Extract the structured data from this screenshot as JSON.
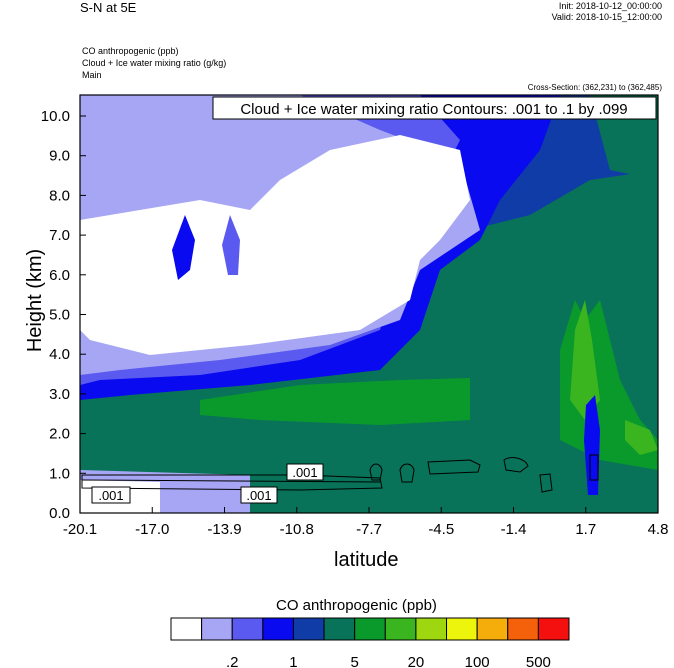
{
  "header": {
    "title": "S-N at 5E",
    "init": "Init: 2018-10-12_00:00:00",
    "valid": "Valid: 2018-10-15_12:00:00",
    "fields": [
      "CO anthropogenic   (ppb)",
      "Cloud + Ice water mixing ratio   (g/kg)",
      "Main"
    ],
    "cross_section": "Cross-Section: (362,231) to (362,485)"
  },
  "chart_data": {
    "type": "heatmap",
    "xlabel": "latitude",
    "ylabel": "Height (km)",
    "x_ticks": [
      "-20.1",
      "-17.0",
      "-13.9",
      "-10.8",
      "-7.7",
      "-4.5",
      "-1.4",
      "1.7",
      "4.8"
    ],
    "y_ticks": [
      "0.0",
      "1.0",
      "2.0",
      "3.0",
      "4.0",
      "5.0",
      "6.0",
      "7.0",
      "8.0",
      "9.0",
      "10.0"
    ],
    "xlim": [
      -20.1,
      4.8
    ],
    "ylim": [
      0.0,
      10.0
    ],
    "contour_title": "Cloud + Ice water mixing ratio Contours: .001 to .1 by .099",
    "contour_labels": [
      ".001",
      ".001",
      ".001"
    ],
    "colorbar": {
      "title": "CO anthropogenic  (ppb)",
      "tick_labels": [
        ".2",
        "1",
        "5",
        "20",
        "100",
        "500"
      ],
      "colors": [
        "#ffffff",
        "#a6a6f5",
        "#5a5af0",
        "#0a0af0",
        "#0f3ca6",
        "#087358",
        "#0a9a2c",
        "#3ab51f",
        "#9ed60f",
        "#ecf50b",
        "#f5ad0c",
        "#f5600b",
        "#f51010"
      ]
    }
  }
}
